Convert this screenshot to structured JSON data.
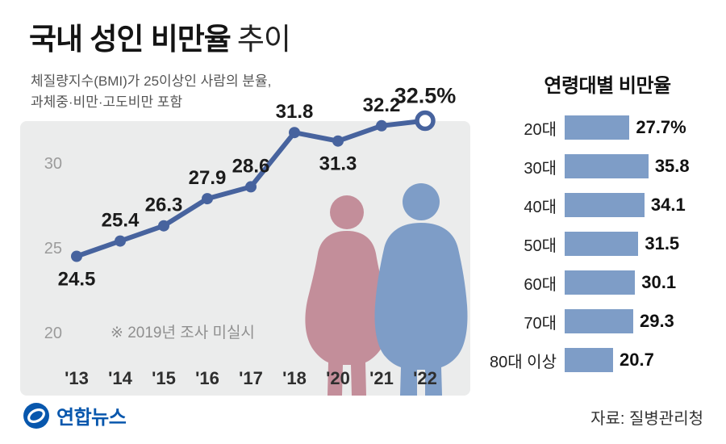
{
  "header": {
    "title_bold": "국내 성인 비만율",
    "title_light": "추이",
    "subtitle_line1": "체질량지수(BMI)가 25이상인 사람의 분율,",
    "subtitle_line2": "과체중·비만·고도비만 포함"
  },
  "chart_data": [
    {
      "type": "line",
      "title": "국내 성인 비만율 추이",
      "x": [
        "'13",
        "'14",
        "'15",
        "'16",
        "'17",
        "'18",
        "'20",
        "'21",
        "'22"
      ],
      "values": [
        24.5,
        25.4,
        26.3,
        27.9,
        28.6,
        31.8,
        31.3,
        32.2,
        32.5
      ],
      "point_labels": [
        "24.5",
        "25.4",
        "26.3",
        "27.9",
        "28.6",
        "31.8",
        "31.3",
        "32.2",
        "32.5%"
      ],
      "label_position": [
        "below",
        "above",
        "above",
        "above",
        "above",
        "above",
        "below",
        "above",
        "above"
      ],
      "yticks": [
        20,
        25,
        30
      ],
      "ylim": [
        18.5,
        34
      ],
      "grid": false,
      "legend": "none",
      "annotation": "※ 2019년 조사 미실시",
      "unit": "%"
    },
    {
      "type": "bar",
      "orientation": "horizontal",
      "title": "연령대별 비만율",
      "categories": [
        "20대",
        "30대",
        "40대",
        "50대",
        "60대",
        "70대",
        "80대 이상"
      ],
      "values": [
        27.7,
        35.8,
        34.1,
        31.5,
        30.1,
        29.3,
        20.7
      ],
      "value_labels": [
        "27.7%",
        "35.8",
        "34.1",
        "31.5",
        "30.1",
        "29.3",
        "20.7"
      ],
      "xlim": [
        0,
        40
      ]
    }
  ],
  "footer": {
    "logo_text": "연합뉴스",
    "source": "자료: 질병관리청"
  },
  "colors": {
    "line": "#47639e",
    "bar": "#7e9dc7",
    "female_silhouette": "#c38e9a",
    "male_silhouette": "#7e9dc7",
    "panel_bg": "#ebecec",
    "logo_blue": "#0857ad"
  }
}
